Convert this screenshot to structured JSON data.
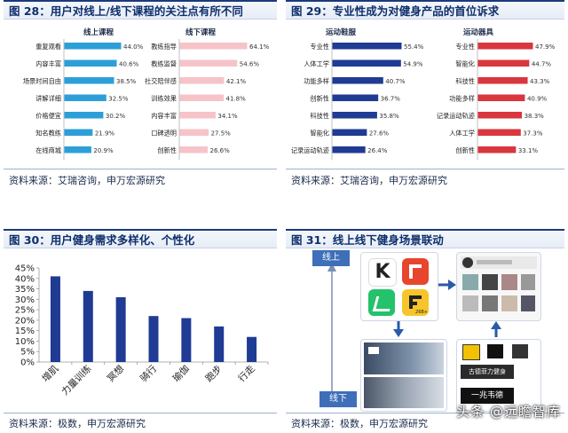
{
  "fig28": {
    "title": "图 28：用户对线上/线下课程的关注点有所不同",
    "source": "资料来源：艾瑞咨询，申万宏源研究",
    "online": {
      "label": "线上课程",
      "color": "#2d9fd8",
      "categories": [
        "重复观看",
        "内容丰富",
        "场景时间自由",
        "讲解详细",
        "价格便宜",
        "知名教练",
        "在线商城"
      ],
      "values": [
        44.0,
        40.6,
        38.5,
        32.5,
        30.2,
        21.9,
        20.9
      ]
    },
    "offline": {
      "label": "线下课程",
      "color": "#f6c3c9",
      "categories": [
        "教练指导",
        "教练监督",
        "社交陪伴感",
        "训练效果",
        "内容丰富",
        "口碑透明",
        "创新性"
      ],
      "values": [
        64.1,
        54.6,
        42.1,
        41.8,
        34.1,
        27.5,
        26.6
      ]
    }
  },
  "fig29": {
    "title": "图 29：专业性成为对健身产品的首位诉求",
    "source": "资料来源：艾瑞咨询，申万宏源研究",
    "clothing": {
      "label": "运动鞋服",
      "color": "#1f3b93",
      "categories": [
        "专业性",
        "人体工学",
        "功能多样",
        "创新性",
        "科技性",
        "智能化",
        "记录运动轨迹"
      ],
      "values": [
        55.4,
        54.9,
        40.7,
        36.7,
        35.8,
        27.6,
        26.4
      ]
    },
    "equipment": {
      "label": "运动器具",
      "color": "#d9363e",
      "categories": [
        "专业性",
        "智能化",
        "科技性",
        "功能多样",
        "记录运动轨迹",
        "人体工学",
        "创新性"
      ],
      "values": [
        47.9,
        44.7,
        43.3,
        40.9,
        38.3,
        37.3,
        33.1
      ]
    }
  },
  "fig30": {
    "title": "图 30：用户健身需求多样化、个性化",
    "source": "资料来源：极数，申万宏源研究",
    "chart_data": {
      "type": "bar",
      "categories": [
        "增肌",
        "力量训练",
        "冥想",
        "骑行",
        "瑜伽",
        "跑步",
        "行走"
      ],
      "values": [
        41,
        34,
        31,
        22,
        21,
        17,
        12
      ],
      "yticks": [
        "0%",
        "5%",
        "10%",
        "15%",
        "20%",
        "25%",
        "30%",
        "35%",
        "40%",
        "45%"
      ],
      "ylim": [
        0,
        45
      ],
      "color": "#1f3b93",
      "grid": false
    }
  },
  "fig31": {
    "title": "图 31：线上线下健身场景联动",
    "source": "资料来源：极数，申万宏源研究",
    "online_label": "线上",
    "offline_label": "线下",
    "app_icons": [
      "keep-app-icon",
      "red-app-icon",
      "green-app-icon",
      "yellow-app-icon"
    ],
    "yellow_app_badge": "26B+",
    "store_sign": "一兆韦德",
    "store_logo_text": "古德菲力健身"
  },
  "watermark": "头条 @远瞻智库"
}
